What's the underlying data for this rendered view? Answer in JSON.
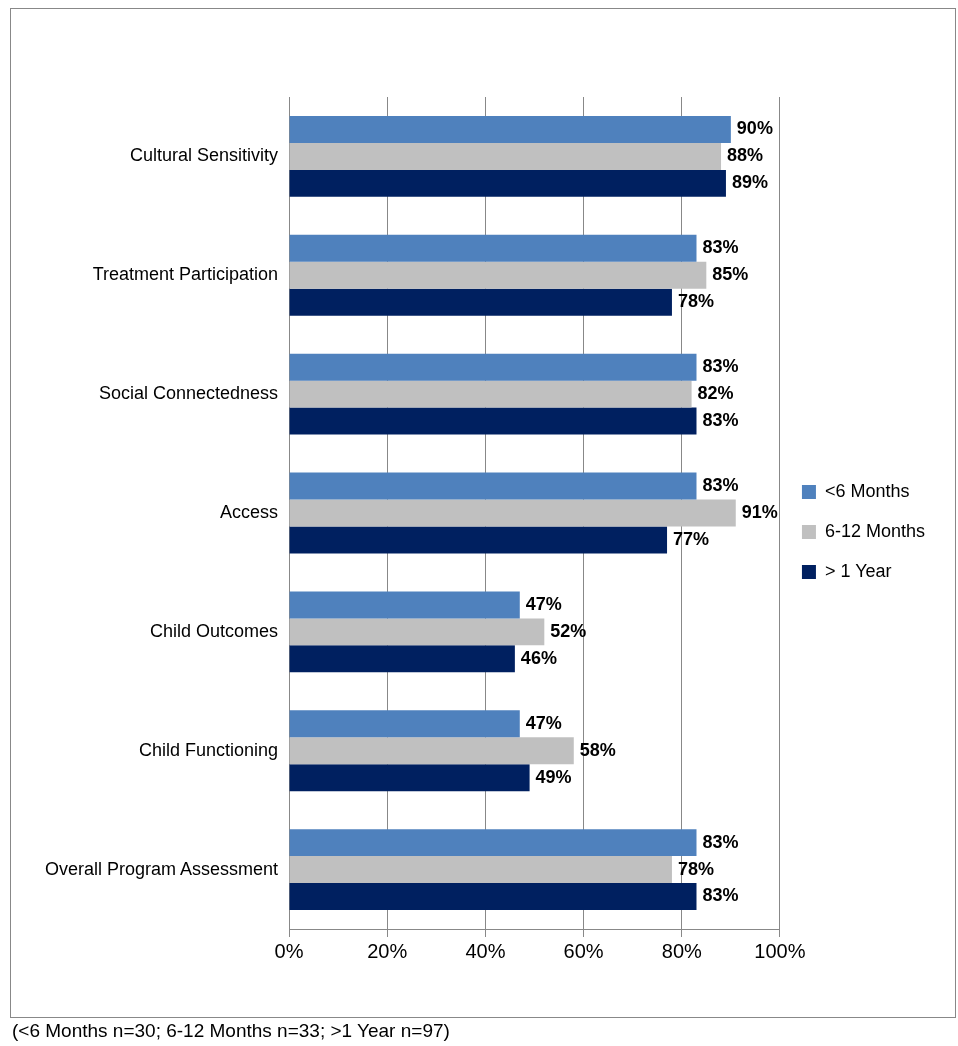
{
  "chart_data": {
    "type": "bar",
    "orientation": "horizontal",
    "categories": [
      "Cultural Sensitivity",
      "Treatment Participation",
      "Social Connectedness",
      "Access",
      "Child Outcomes",
      "Child Functioning",
      "Overall Program Assessment"
    ],
    "series": [
      {
        "name": "<6 Months",
        "color": "#4f81bd",
        "values": [
          90,
          83,
          83,
          83,
          47,
          47,
          83
        ],
        "value_labels": [
          "90%",
          "83%",
          "83%",
          "83%",
          "47%",
          "47%",
          "83%"
        ]
      },
      {
        "name": "6-12 Months",
        "color": "#c0c0c0",
        "values": [
          88,
          85,
          82,
          91,
          52,
          58,
          78
        ],
        "value_labels": [
          "88%",
          "85%",
          "82%",
          "91%",
          "52%",
          "58%",
          "78%"
        ]
      },
      {
        "name": "> 1 Year",
        "color": "#002060",
        "values": [
          89,
          78,
          83,
          77,
          46,
          49,
          83
        ],
        "value_labels": [
          "89%",
          "78%",
          "83%",
          "77%",
          "46%",
          "49%",
          "83%"
        ]
      }
    ],
    "xlim": [
      0,
      100
    ],
    "xticks": [
      {
        "value": 0,
        "label": "0%"
      },
      {
        "value": 20,
        "label": "20%"
      },
      {
        "value": 40,
        "label": "40%"
      },
      {
        "value": 60,
        "label": "60%"
      },
      {
        "value": 80,
        "label": "80%"
      },
      {
        "value": 100,
        "label": "100%"
      }
    ],
    "grid": "x",
    "legend": "right",
    "annotations": [
      "(<6 Months n=30; 6-12 Months n=33; >1 Year n=97)"
    ]
  }
}
